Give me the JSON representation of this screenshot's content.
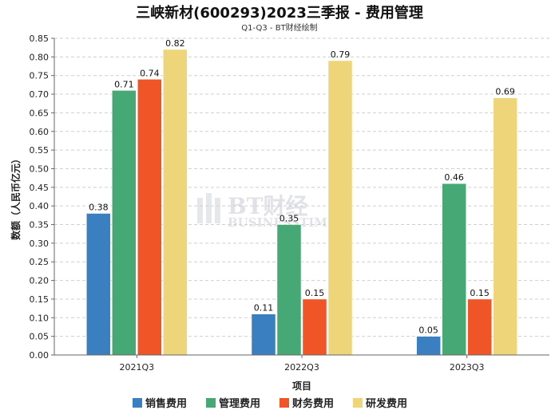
{
  "chart_data": {
    "type": "bar",
    "title": "三峡新材(600293)2023三季报 - 费用管理",
    "subtitle": "Q1-Q3 - BT财经绘制",
    "xlabel": "项目",
    "ylabel": "数额（人民币亿元）",
    "categories": [
      "2021Q3",
      "2022Q3",
      "2023Q3"
    ],
    "ylim": [
      0,
      0.85
    ],
    "yticks": [
      "0.00",
      "0.05",
      "0.10",
      "0.15",
      "0.20",
      "0.25",
      "0.30",
      "0.35",
      "0.40",
      "0.45",
      "0.50",
      "0.55",
      "0.60",
      "0.65",
      "0.70",
      "0.75",
      "0.80",
      "0.85"
    ],
    "grid": true,
    "legend_position": "bottom",
    "series": [
      {
        "name": "销售费用",
        "color": "#3a7fc0",
        "values": [
          0.38,
          0.11,
          0.05
        ]
      },
      {
        "name": "管理费用",
        "color": "#46a874",
        "values": [
          0.71,
          0.35,
          0.46
        ]
      },
      {
        "name": "财务费用",
        "color": "#ef5527",
        "values": [
          0.74,
          0.15,
          0.15
        ]
      },
      {
        "name": "研发费用",
        "color": "#efd57a",
        "values": [
          0.82,
          0.79,
          0.69
        ]
      }
    ],
    "watermark": {
      "main": "BT财经",
      "sub": "BUSINESSTIMES"
    }
  }
}
